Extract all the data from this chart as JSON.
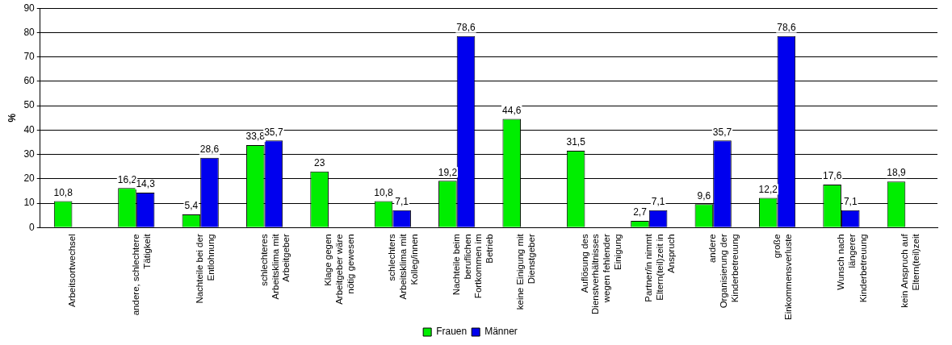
{
  "chart_data": {
    "type": "bar",
    "ylabel": "%",
    "categories": [
      "Arbeitsortwechsel",
      "andere, schlechtere\nTätigkeit",
      "Nachteile bei der\nEntlohnung",
      "schlechteres\nArbeitsklima mit\nArbeitgeber",
      "Klage gegen\nArbeitgeber wäre\nnötig gewesen",
      "schlechters\nArbeitsklima mit\nKolleg/innen",
      "Nachteile beim\nberuflichen\nFortkommen im\nBetrieb",
      "keine Einigung mit\nDienstgeber",
      "Auflösung des\nDienstverhältnisses\nwegen fehlender\nEinigung",
      "Partner/in nimmt\nEltern(teil)zeit in\nAnspruch",
      "andere\nOrganisierung der\nKinderbetreuung",
      "große\nEinkommensverluste",
      "Wunsch nach\nlängerer\nKinderbetreuung",
      "kein Anspruch auf\nEltern(teil)zeit"
    ],
    "series": [
      {
        "name": "Frauen",
        "color": "#00ee00",
        "values": [
          10.8,
          16.2,
          5.4,
          33.8,
          23,
          10.8,
          19.2,
          44.6,
          31.5,
          2.7,
          9.6,
          12.2,
          17.6,
          18.9
        ],
        "value_labels": [
          "10,8",
          "16,2",
          "5,4",
          "33,8",
          "23",
          "10,8",
          "19,2",
          "44,6",
          "31,5",
          "2,7",
          "9,6",
          "12,2",
          "17,6",
          "18,9"
        ]
      },
      {
        "name": "Männer",
        "color": "#0000ee",
        "values": [
          null,
          14.3,
          28.6,
          35.7,
          null,
          7.1,
          78.6,
          null,
          null,
          7.1,
          35.7,
          78.6,
          7.1,
          null
        ],
        "value_labels": [
          null,
          "14,3",
          "28,6",
          "35,7",
          null,
          "7,1",
          "78,6",
          null,
          null,
          "7,1",
          "35,7",
          "78,6",
          "7,1",
          null
        ]
      }
    ],
    "ylim": [
      0,
      90
    ],
    "yticks": [
      0,
      10,
      20,
      30,
      40,
      50,
      60,
      70,
      80,
      90
    ],
    "grid": "y",
    "legend": "bottom"
  }
}
